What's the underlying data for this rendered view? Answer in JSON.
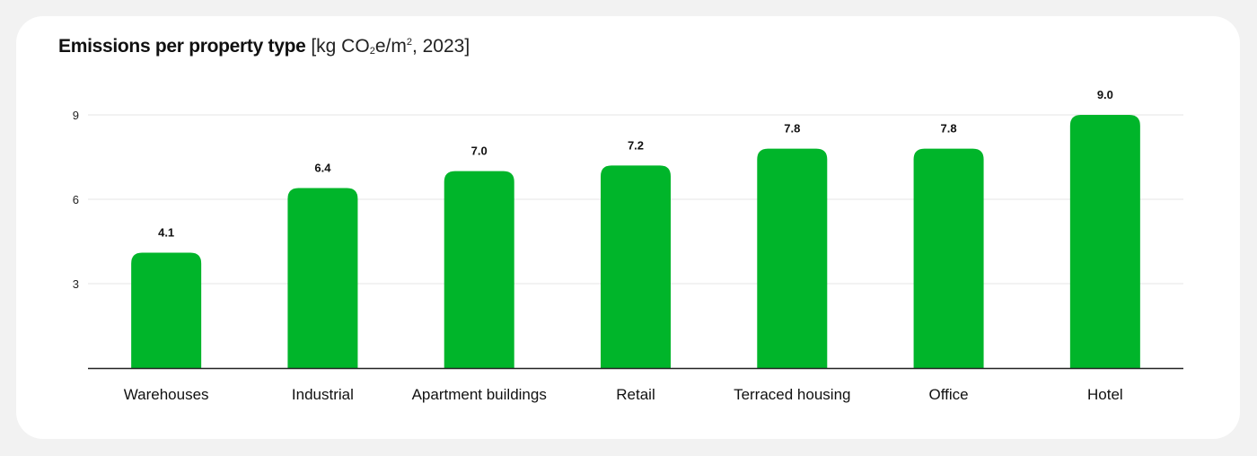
{
  "chart_data": {
    "type": "bar",
    "title": "Emissions per property type",
    "unit_parts": {
      "prefix": "[kg CO",
      "sub": "2",
      "mid": "e/m",
      "sup": "2",
      "suffix": ", 2023]"
    },
    "xlabel": "",
    "ylabel": "",
    "categories": [
      "Warehouses",
      "Industrial",
      "Apartment buildings",
      "Retail",
      "Terraced housing",
      "Office",
      "Hotel"
    ],
    "values": [
      4.1,
      6.4,
      7.0,
      7.2,
      7.8,
      7.8,
      9.0
    ],
    "value_labels": [
      "4.1",
      "6.4",
      "7.0",
      "7.2",
      "7.8",
      "7.8",
      "9.0"
    ],
    "ylim": [
      0,
      9
    ],
    "yticks": [
      3,
      6,
      9
    ],
    "grid": true,
    "colors": {
      "bar": "#00b52a",
      "grid": "#e6e6e6",
      "axis": "#222222"
    }
  }
}
